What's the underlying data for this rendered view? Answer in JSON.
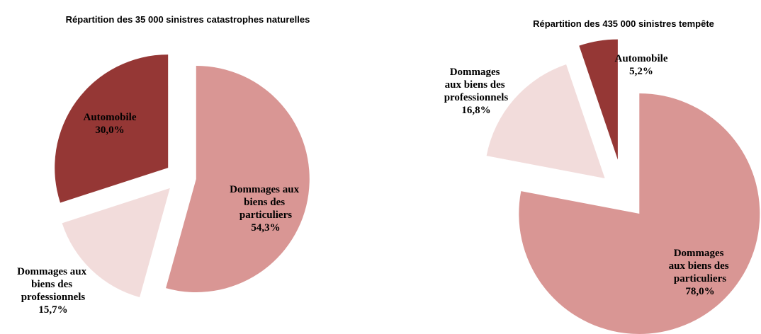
{
  "chart_data": [
    {
      "type": "pie",
      "title": "Répartition des 35 000 sinistres catastrophes naturelles",
      "categories": [
        "Dommages aux biens des particuliers",
        "Dommages aux biens des professionnels",
        "Automobile"
      ],
      "values": [
        54.3,
        15.7,
        30.0
      ],
      "value_labels": [
        "54,3%",
        "15,7%",
        "30,0%"
      ],
      "colors": [
        "#d99694",
        "#f2dcdb",
        "#953735"
      ]
    },
    {
      "type": "pie",
      "title": "Répartition des 435 000 sinistres tempête",
      "categories": [
        "Dommages aux biens des particuliers",
        "Dommages aux biens des professionnels",
        "Automobile"
      ],
      "values": [
        78.0,
        16.8,
        5.2
      ],
      "value_labels": [
        "78,0%",
        "16,8%",
        "5,2%"
      ],
      "colors": [
        "#d99694",
        "#f2dcdb",
        "#953735"
      ]
    }
  ]
}
